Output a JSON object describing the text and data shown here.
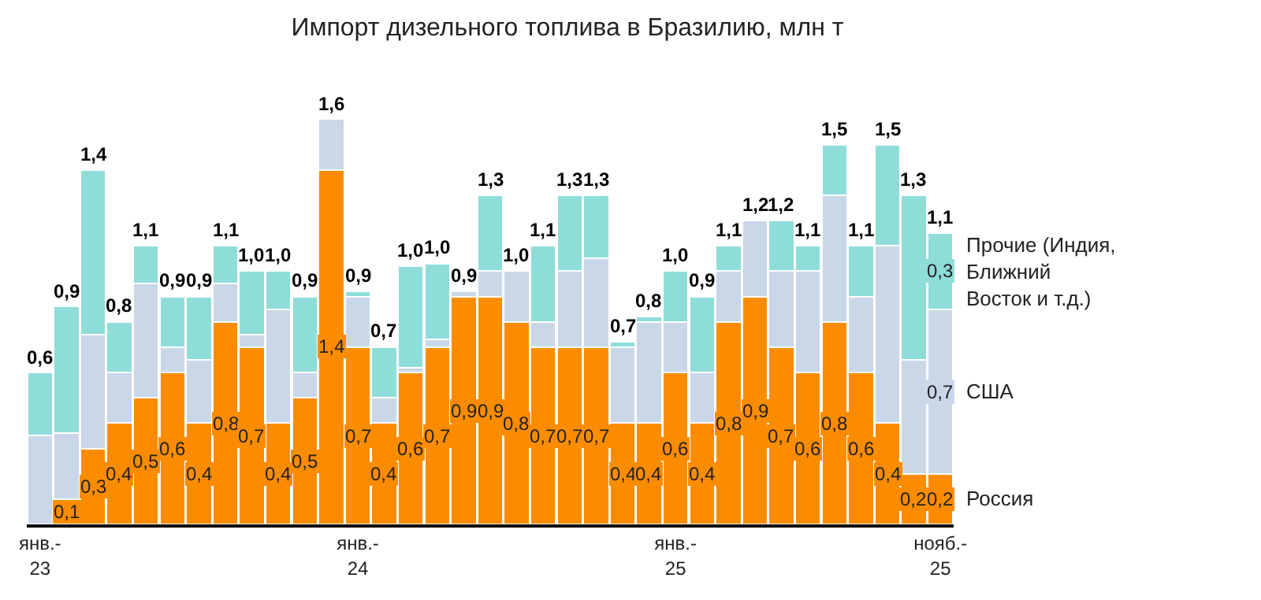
{
  "chart_data": {
    "type": "bar",
    "title": "Импорт дизельного топлива в Бразилию, млн т",
    "stacked": true,
    "legend": "right",
    "tick_labels": "x",
    "categories": [
      "янв.-\n23",
      null,
      null,
      null,
      null,
      null,
      null,
      null,
      null,
      null,
      null,
      null,
      "янв.-\n24",
      null,
      null,
      null,
      null,
      null,
      null,
      null,
      null,
      null,
      null,
      null,
      "янв.-\n25",
      null,
      null,
      null,
      null,
      null,
      null,
      null,
      null,
      null,
      "нояб.-\n25"
    ],
    "series": [
      {
        "name": "Россия",
        "color": "#fb8c00",
        "values": [
          0,
          0.1,
          0.3,
          0.4,
          0.5,
          0.6,
          0.4,
          0.8,
          0.7,
          0.4,
          0.5,
          1.4,
          0.7,
          0.4,
          0.6,
          0.7,
          0.9,
          0.9,
          0.8,
          0.7,
          0.7,
          0.7,
          0.4,
          0.4,
          0.6,
          0.4,
          0.8,
          0.9,
          0.7,
          0.6,
          0.8,
          0.6,
          0.4,
          0.2,
          0.2
        ],
        "value_labels": [
          null,
          "0,1",
          "0,3",
          "0,4",
          "0,5",
          "0,6",
          "0,4",
          "0,8",
          "0,7",
          "0,4",
          "0,5",
          "1,4",
          "0,7",
          "0,4",
          "0,6",
          "0,7",
          "0,9",
          "0,9",
          "0,8",
          "0,7",
          "0,7",
          "0,7",
          "0,4",
          "0,4",
          "0,6",
          "0,4",
          "0,8",
          "0,9",
          "0,7",
          "0,6",
          "0,8",
          "0,6",
          "0,4",
          "0,2",
          "0,2"
        ]
      },
      {
        "name": "США",
        "color": "#c9d7e8",
        "values": [
          0.35,
          0.26,
          0.45,
          0.2,
          0.45,
          0.1,
          0.25,
          0.15,
          0.05,
          0.45,
          0.1,
          0.2,
          0.2,
          0.1,
          0.02,
          0.03,
          0.02,
          0.1,
          0.2,
          0.1,
          0.3,
          0.35,
          0.3,
          0.4,
          0.2,
          0.2,
          0.2,
          0.3,
          0.3,
          0.4,
          0.5,
          0.3,
          0.7,
          0.45,
          0.65
        ],
        "value_labels": [
          null,
          null,
          null,
          null,
          null,
          null,
          null,
          null,
          null,
          null,
          null,
          null,
          null,
          null,
          null,
          null,
          null,
          null,
          null,
          null,
          null,
          null,
          null,
          null,
          null,
          null,
          null,
          null,
          null,
          null,
          null,
          null,
          null,
          null,
          "0,7"
        ]
      },
      {
        "name": "Прочие (Индия,\nБлижний\nВосток и т.д.)",
        "color": "#8fddd8",
        "values": [
          0.25,
          0.5,
          0.65,
          0.2,
          0.15,
          0.2,
          0.25,
          0.15,
          0.25,
          0.15,
          0.3,
          0,
          0.02,
          0.2,
          0.4,
          0.3,
          0,
          0.3,
          0,
          0.3,
          0.3,
          0.25,
          0.02,
          0.02,
          0.2,
          0.3,
          0.1,
          0,
          0.2,
          0.1,
          0.2,
          0.2,
          0.4,
          0.65,
          0.3
        ],
        "value_labels": [
          null,
          null,
          null,
          null,
          null,
          null,
          null,
          null,
          null,
          null,
          null,
          null,
          null,
          null,
          null,
          null,
          null,
          null,
          null,
          null,
          null,
          null,
          null,
          null,
          null,
          null,
          null,
          null,
          null,
          null,
          null,
          null,
          null,
          null,
          "0,3"
        ]
      }
    ],
    "totals": [
      "0,6",
      "0,9",
      "1,4",
      "0,8",
      "1,1",
      "0,9",
      "0,9",
      "1,1",
      "1,0",
      "1,0",
      "0,9",
      "1,6",
      "0,9",
      "0,7",
      "1,0",
      "1,0",
      "0,9",
      "1,3",
      "1,0",
      "1,1",
      "1,3",
      "1,3",
      "0,7",
      "0,8",
      "1,0",
      "0,9",
      "1,1",
      "1,2",
      "1,2",
      "1,1",
      "1,5",
      "1,1",
      "1,5",
      "1,3",
      "1,1"
    ]
  }
}
